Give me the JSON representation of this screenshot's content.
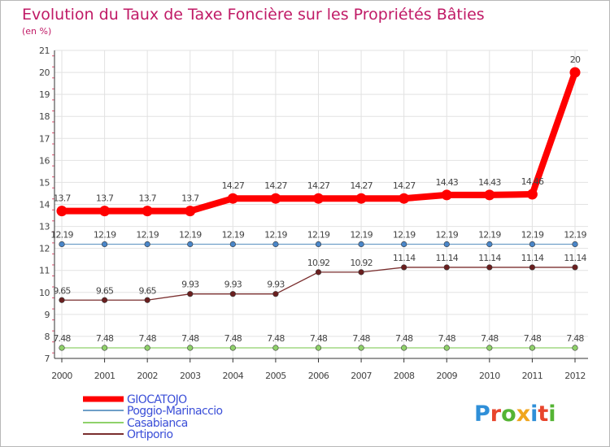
{
  "chart_data": {
    "type": "line",
    "title": "Evolution du Taux de Taxe Foncière sur les Propriétés Bâties",
    "subtitle": "(en %)",
    "x": [
      "2000",
      "2001",
      "2002",
      "2003",
      "2004",
      "2005",
      "2006",
      "2007",
      "2008",
      "2009",
      "2010",
      "2011",
      "2012"
    ],
    "ylim": [
      7,
      21
    ],
    "yticks": [
      "7",
      "8",
      "9",
      "10",
      "11",
      "12",
      "13",
      "14",
      "15",
      "16",
      "17",
      "18",
      "19",
      "20",
      "21"
    ],
    "grid": true,
    "legend_position": "bottom-left",
    "series": [
      {
        "name": "GIOCATOJO",
        "color": "#ff0000",
        "marker": "#ff0000",
        "values": [
          13.7,
          13.7,
          13.7,
          13.7,
          14.27,
          14.27,
          14.27,
          14.27,
          14.27,
          14.43,
          14.43,
          14.46,
          20
        ],
        "labels": [
          "13.7",
          "13.7",
          "13.7",
          "13.7",
          "14.27",
          "14.27",
          "14.27",
          "14.27",
          "14.27",
          "14.43",
          "14.43",
          "14.46",
          "20"
        ]
      },
      {
        "name": "Poggio-Marinaccio",
        "color": "#6f9fc8",
        "marker": "#4a86c8",
        "values": [
          12.19,
          12.19,
          12.19,
          12.19,
          12.19,
          12.19,
          12.19,
          12.19,
          12.19,
          12.19,
          12.19,
          12.19,
          12.19
        ],
        "labels": [
          "12.19",
          "12.19",
          "12.19",
          "12.19",
          "12.19",
          "12.19",
          "12.19",
          "12.19",
          "12.19",
          "12.19",
          "12.19",
          "12.19",
          "12.19"
        ]
      },
      {
        "name": "Casabianca",
        "color": "#8fd16a",
        "marker": "#8fd16a",
        "values": [
          7.48,
          7.48,
          7.48,
          7.48,
          7.48,
          7.48,
          7.48,
          7.48,
          7.48,
          7.48,
          7.48,
          7.48,
          7.48
        ],
        "labels": [
          "7.48",
          "7.48",
          "7.48",
          "7.48",
          "7.48",
          "7.48",
          "7.48",
          "7.48",
          "7.48",
          "7.48",
          "7.48",
          "7.48",
          "7.48"
        ]
      },
      {
        "name": "Ortiporio",
        "color": "#7a2e2e",
        "marker": "#6a1f1f",
        "values": [
          9.65,
          9.65,
          9.65,
          9.93,
          9.93,
          9.93,
          10.92,
          10.92,
          11.14,
          11.14,
          11.14,
          11.14,
          11.14
        ],
        "labels": [
          "9.65",
          "9.65",
          "9.65",
          "9.93",
          "9.93",
          "9.93",
          "10.92",
          "10.92",
          "11.14",
          "11.14",
          "11.14",
          "11.14",
          "11.14"
        ]
      }
    ]
  },
  "logo": {
    "text": "Proxiti",
    "letter_colors": [
      "#2f8fd8",
      "#e8452c",
      "#55b434",
      "#f0a61e",
      "#2f8fd8",
      "#e8452c",
      "#55b434"
    ]
  },
  "colors": {
    "title": "#c01a66",
    "axis": "#333333",
    "grid": "#e2e2e2",
    "tick_dash": "#e05070",
    "label": "#444444"
  }
}
